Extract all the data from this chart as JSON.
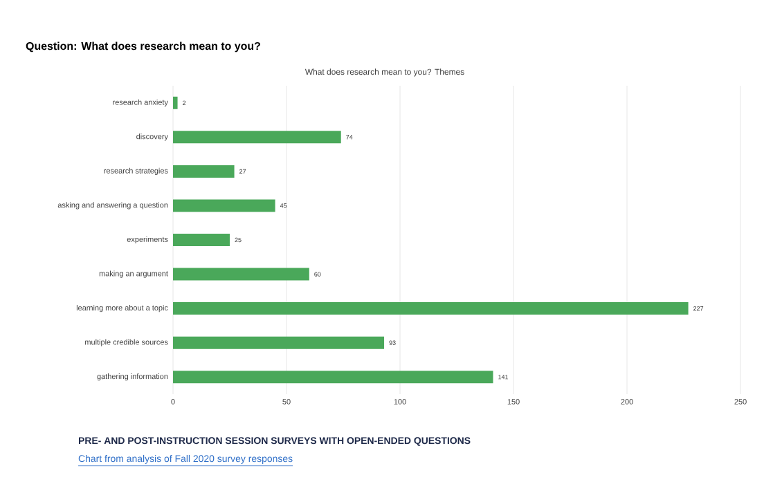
{
  "chart_data": {
    "type": "bar",
    "orientation": "horizontal",
    "title": "Question: What does research mean to you?",
    "subtitle": "What does research mean to you? Themes",
    "categories": [
      "research anxiety",
      "discovery",
      "research strategies",
      "asking and answering a question",
      "experiments",
      "making an argument",
      "learning more about a topic",
      "multiple credible sources",
      "gathering information"
    ],
    "values": [
      2,
      74,
      27,
      45,
      25,
      60,
      227,
      93,
      141
    ],
    "color": "#4aa85a",
    "data_labels": true,
    "xlim": [
      0,
      250
    ],
    "xticks": [
      0,
      50,
      100,
      150,
      200,
      250
    ],
    "grid": "x",
    "annotations": [
      "PRE- AND POST-INSTRUCTION SESSION SURVEYS WITH OPEN-ENDED QUESTIONS",
      "Chart from analysis of Fall 2020 survey responses"
    ]
  }
}
